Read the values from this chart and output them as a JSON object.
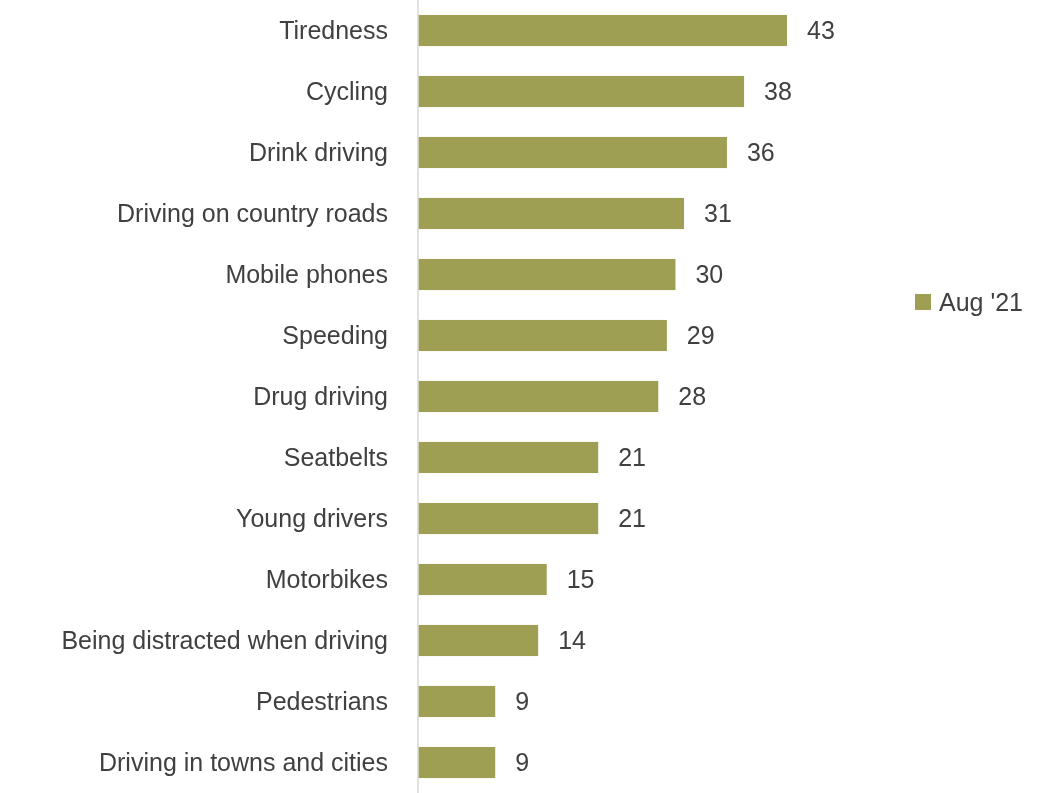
{
  "chart_data": {
    "type": "bar",
    "orientation": "horizontal",
    "categories": [
      "Tiredness",
      "Cycling",
      "Drink driving",
      "Driving on country roads",
      "Mobile phones",
      "Speeding",
      "Drug driving",
      "Seatbelts",
      "Young drivers",
      "Motorbikes",
      "Being distracted when driving",
      "Pedestrians",
      "Driving in towns and cities"
    ],
    "series": [
      {
        "name": "Aug '21",
        "color": "#9e9f52",
        "values": [
          43,
          38,
          36,
          31,
          30,
          29,
          28,
          21,
          21,
          15,
          14,
          9,
          9
        ]
      }
    ],
    "xlim": [
      0,
      43
    ],
    "data_labels": true,
    "legend": "right"
  }
}
